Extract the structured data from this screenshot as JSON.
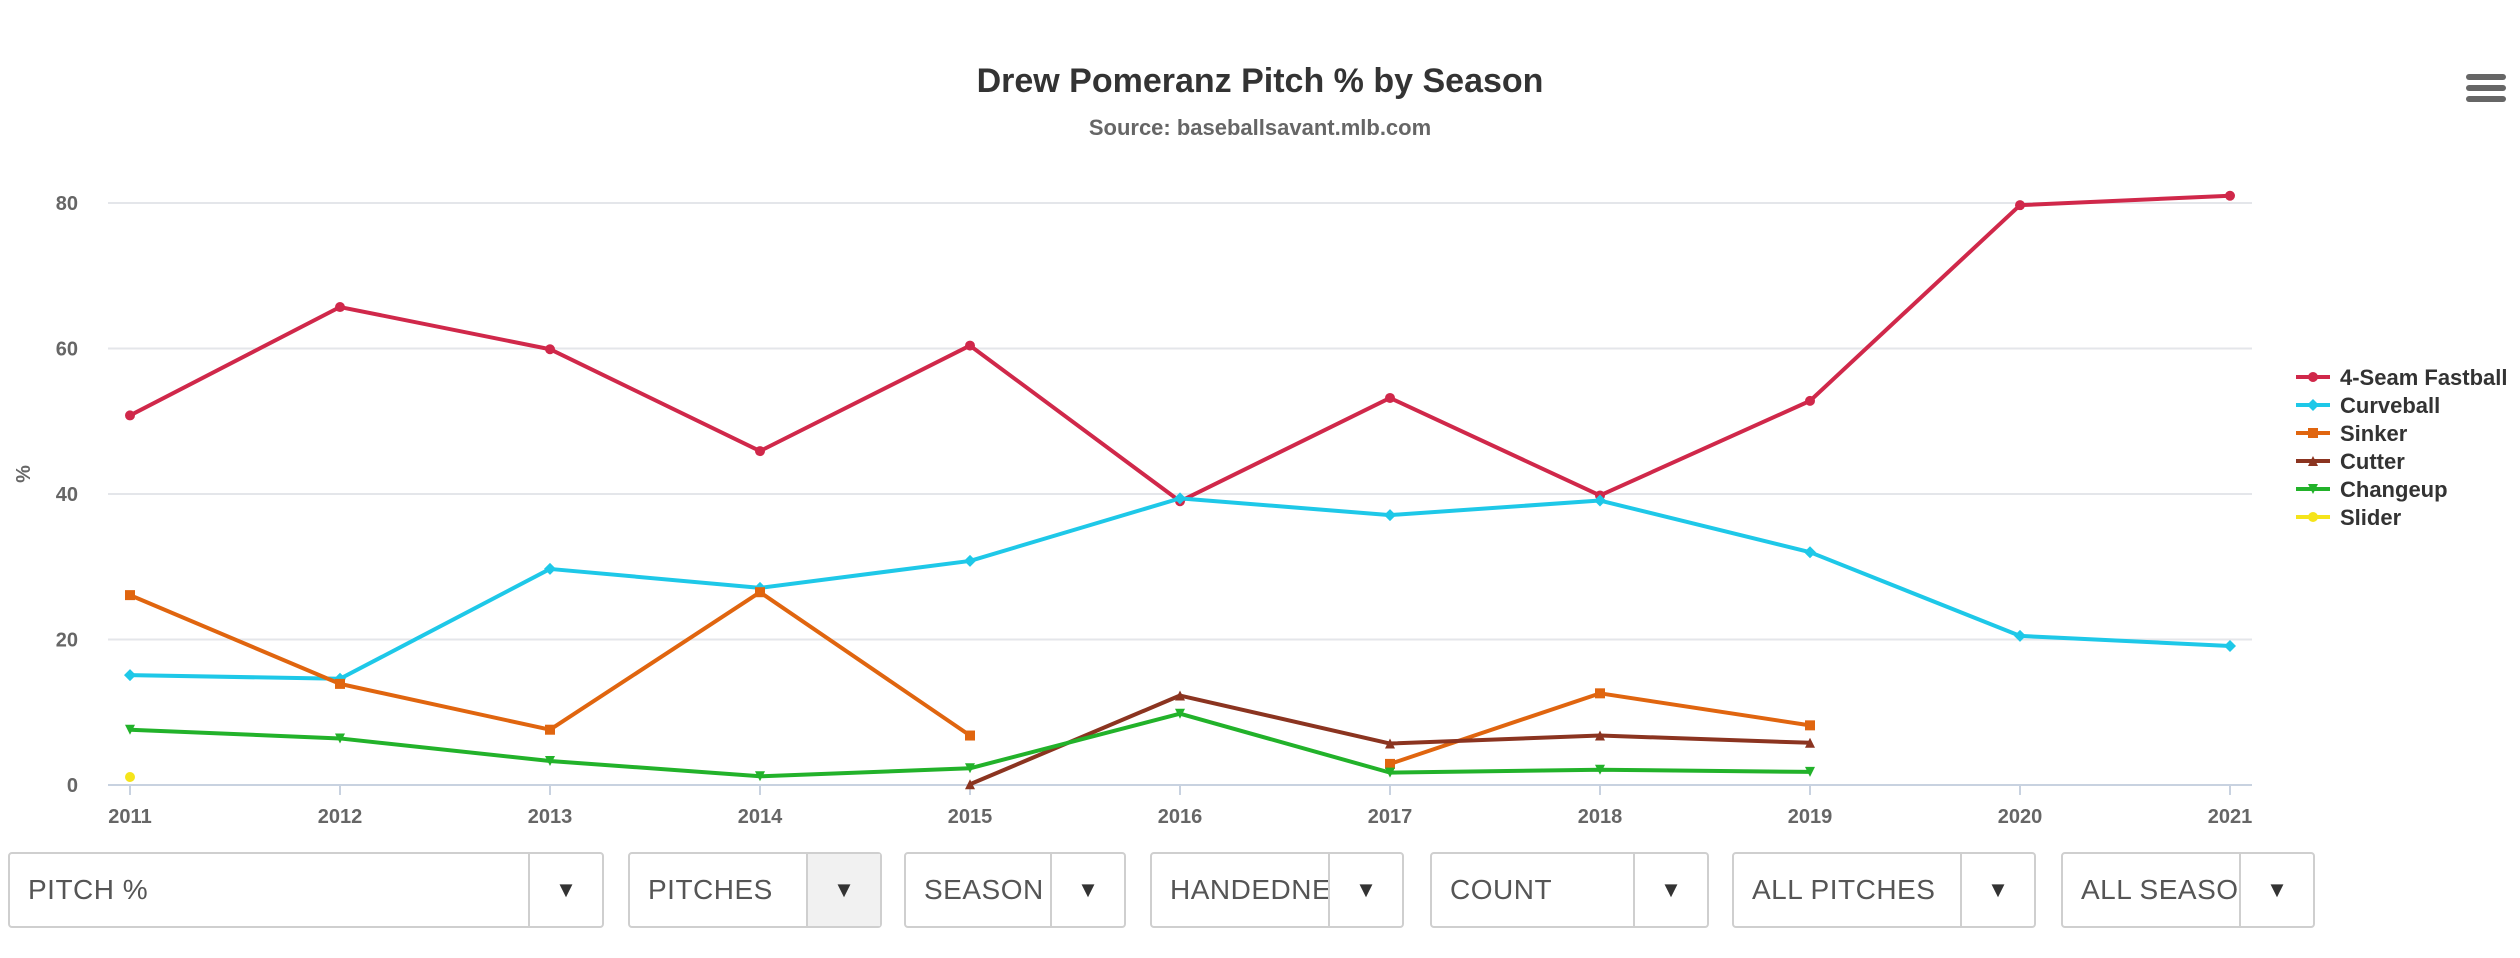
{
  "chart_data": {
    "type": "line",
    "title": "Drew Pomeranz Pitch % by Season",
    "subtitle": "Source: baseballsavant.mlb.com",
    "xlabel": "",
    "ylabel": "%",
    "ylim": [
      0,
      80
    ],
    "yticks": [
      0,
      20,
      40,
      60,
      80
    ],
    "x": [
      "2011",
      "2012",
      "2013",
      "2014",
      "2015",
      "2016",
      "2017",
      "2018",
      "2019",
      "2020",
      "2021"
    ],
    "grid": true,
    "legend_position": "right",
    "series": [
      {
        "name": "4-Seam Fastball",
        "color": "#d0284a",
        "marker": "circle",
        "values": [
          50.8,
          65.7,
          59.9,
          45.9,
          60.4,
          39.0,
          53.2,
          39.8,
          52.8,
          79.7,
          81.0
        ]
      },
      {
        "name": "Curveball",
        "color": "#1ec8e8",
        "marker": "diamond",
        "values": [
          15.1,
          14.6,
          29.7,
          27.1,
          30.8,
          39.4,
          37.1,
          39.1,
          32.0,
          20.5,
          19.1
        ]
      },
      {
        "name": "Sinker",
        "color": "#e0650f",
        "marker": "square",
        "values": [
          26.1,
          13.9,
          7.6,
          26.5,
          6.8,
          null,
          2.9,
          12.6,
          8.2,
          null,
          null
        ]
      },
      {
        "name": "Cutter",
        "color": "#8b3420",
        "marker": "triangle",
        "values": [
          null,
          null,
          null,
          null,
          0.1,
          12.3,
          5.7,
          6.8,
          5.8,
          null,
          null
        ]
      },
      {
        "name": "Changeup",
        "color": "#22b22a",
        "marker": "triangle-down",
        "values": [
          7.6,
          6.4,
          3.3,
          1.2,
          2.3,
          9.8,
          1.7,
          2.1,
          1.8,
          null,
          null
        ]
      },
      {
        "name": "Slider",
        "color": "#f5e41a",
        "marker": "circle",
        "values": [
          1.1,
          null,
          null,
          null,
          null,
          null,
          null,
          null,
          null,
          null,
          null
        ]
      }
    ]
  },
  "controls": {
    "metric": "PITCH %",
    "pitches": "PITCHES",
    "season": "SEASON",
    "handedness": "HANDEDNESS",
    "count": "COUNT",
    "all_pitches": "ALL PITCHES",
    "all_seasons": "ALL SEASONS",
    "dropdown_icon": "caret-down-icon"
  }
}
